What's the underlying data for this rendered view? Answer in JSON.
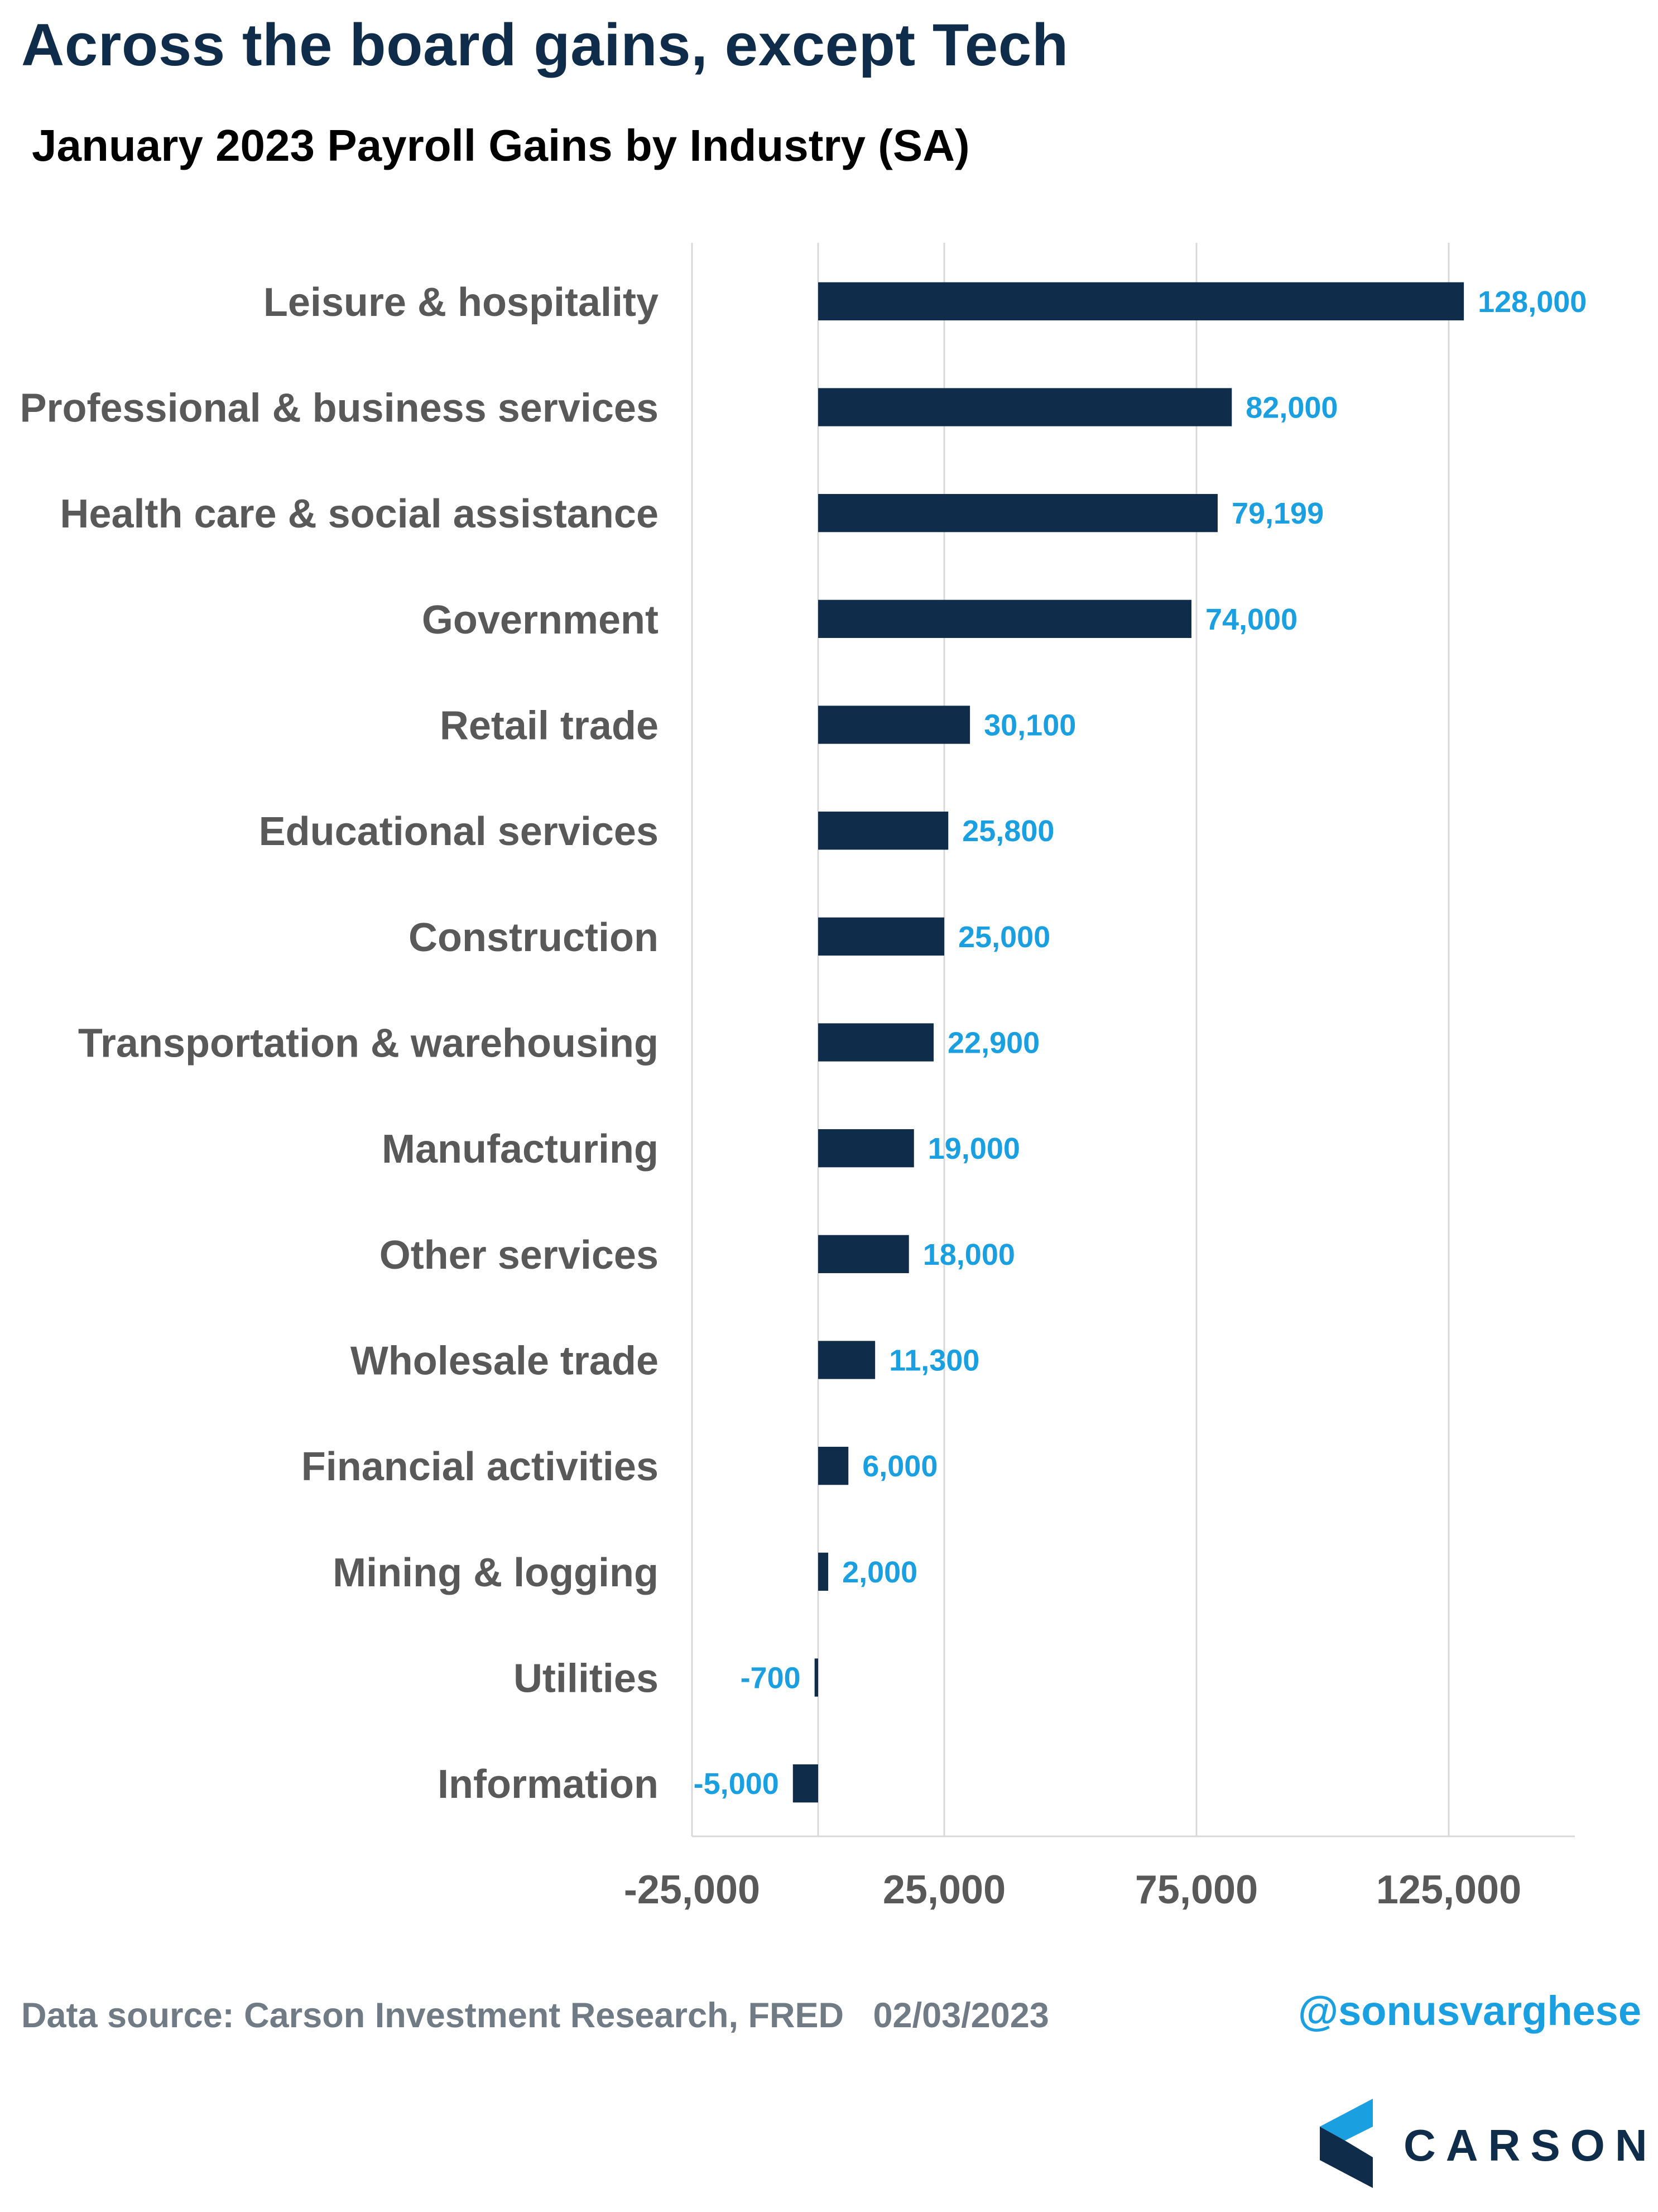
{
  "title": "Across the board gains, except Tech",
  "subtitle": "January 2023 Payroll Gains by Industry (SA)",
  "colors": {
    "bar": "#0f2d4a",
    "data_label": "#1a9fe0",
    "category_label": "#595959",
    "grid": "#d9d9d9",
    "axis_tick": "#595959"
  },
  "chart_data": {
    "type": "bar",
    "orientation": "horizontal",
    "categories": [
      "Leisure & hospitality",
      "Professional & business services",
      "Health care & social assistance",
      "Government",
      "Retail trade",
      "Educational services",
      "Construction",
      "Transportation & warehousing",
      "Manufacturing",
      "Other services",
      "Wholesale trade",
      "Financial activities",
      "Mining & logging",
      "Utilities",
      "Information"
    ],
    "values": [
      128000,
      82000,
      79199,
      74000,
      30100,
      25800,
      25000,
      22900,
      19000,
      18000,
      11300,
      6000,
      2000,
      -700,
      -5000
    ],
    "data_labels": [
      "128,000",
      "82,000",
      "79,199",
      "74,000",
      "30,100",
      "25,800",
      "25,000",
      "22,900",
      "19,000",
      "18,000",
      "11,300",
      "6,000",
      "2,000",
      "-700",
      "-5,000"
    ],
    "xlim": [
      -25000,
      150000
    ],
    "xticks": [
      -25000,
      25000,
      75000,
      125000
    ],
    "xtick_labels": [
      "-25,000",
      "25,000",
      "75,000",
      "125,000"
    ],
    "gridlines": [
      -25000,
      0,
      25000,
      75000,
      125000
    ],
    "grid": true,
    "legend": false
  },
  "footer": {
    "source": "Data source: Carson Investment Research, FRED   02/03/2023",
    "handle": "@sonusvarghese"
  },
  "logo": {
    "text": "CARSON",
    "icon": "carson-chevron-icon"
  }
}
